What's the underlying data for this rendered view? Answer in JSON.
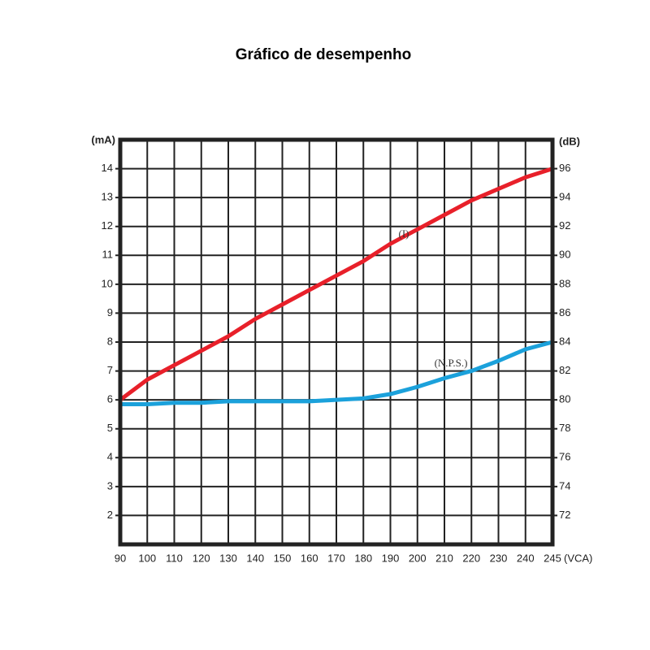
{
  "chart_data": {
    "type": "line",
    "title": "Gráfico de desempenho",
    "categories": [
      90,
      100,
      110,
      120,
      130,
      140,
      150,
      160,
      170,
      180,
      190,
      200,
      210,
      220,
      230,
      240,
      245
    ],
    "x_label": "(VCA)",
    "y_label": "(mA)",
    "y2_label": "(dB)",
    "ylim": [
      1,
      15
    ],
    "yticks": [
      2,
      3,
      4,
      5,
      6,
      7,
      8,
      9,
      10,
      11,
      12,
      13,
      14
    ],
    "y2lim": [
      70,
      98
    ],
    "y2ticks": [
      72,
      74,
      76,
      78,
      80,
      82,
      84,
      86,
      88,
      90,
      92,
      94,
      96
    ],
    "grid": true,
    "series": [
      {
        "name": "(I)",
        "color": "#e8202a",
        "values": [
          6.0,
          6.7,
          7.2,
          7.7,
          8.2,
          8.8,
          9.3,
          9.8,
          10.3,
          10.8,
          11.4,
          11.9,
          12.4,
          12.9,
          13.3,
          13.7,
          14.0
        ]
      },
      {
        "name": "(N.P.S.)",
        "color": "#1ba1db",
        "axis": "y2",
        "values": [
          79.7,
          79.7,
          79.8,
          79.8,
          79.9,
          79.9,
          79.9,
          79.9,
          80.0,
          80.1,
          80.4,
          80.9,
          81.5,
          82.0,
          82.7,
          83.5,
          84.0
        ]
      }
    ]
  }
}
